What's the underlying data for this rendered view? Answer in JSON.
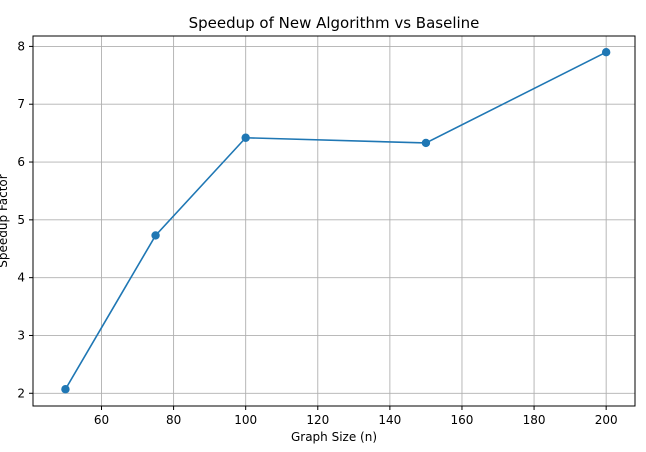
{
  "chart_data": {
    "type": "line",
    "title": "Speedup of New Algorithm vs Baseline",
    "xlabel": "Graph Size (n)",
    "ylabel": "Speedup Factor",
    "x": [
      50,
      75,
      100,
      150,
      200
    ],
    "series": [
      {
        "values": [
          2.07,
          4.73,
          6.42,
          6.33,
          7.9
        ]
      }
    ],
    "xlim": [
      41,
      208
    ],
    "ylim": [
      1.78,
      8.18
    ],
    "xticks": [
      60,
      80,
      100,
      120,
      140,
      160,
      180,
      200
    ],
    "yticks": [
      2,
      3,
      4,
      5,
      6,
      7,
      8
    ],
    "grid": true,
    "marker": "circle",
    "color": "#1f77b4"
  }
}
